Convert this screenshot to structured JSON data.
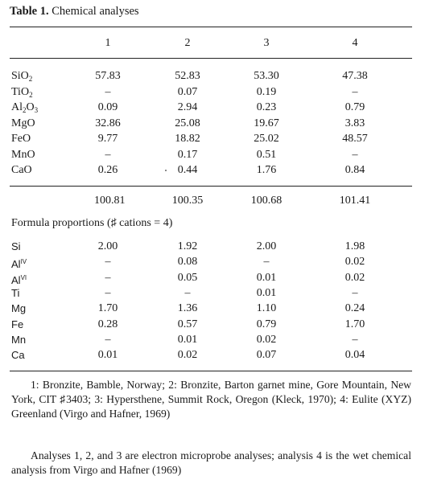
{
  "table": {
    "title_bold": "Table 1.",
    "title_rest": " Chemical analyses",
    "columns": [
      "1",
      "2",
      "3",
      "4"
    ],
    "oxides": [
      {
        "base": "SiO",
        "sub": "2",
        "sub2": "",
        "values": [
          "57.83",
          "52.83",
          "53.30",
          "47.38"
        ]
      },
      {
        "base": "TiO",
        "sub": "2",
        "sub2": "",
        "values": [
          "–",
          "0.07",
          "0.19",
          "–"
        ]
      },
      {
        "base": "Al",
        "sub": "2",
        "mid": "O",
        "sub2": "3",
        "values": [
          "0.09",
          "2.94",
          "0.23",
          "0.79"
        ]
      },
      {
        "base": "MgO",
        "sub": "",
        "sub2": "",
        "values": [
          "32.86",
          "25.08",
          "19.67",
          "3.83"
        ]
      },
      {
        "base": "FeO",
        "sub": "",
        "sub2": "",
        "values": [
          "9.77",
          "18.82",
          "25.02",
          "48.57"
        ]
      },
      {
        "base": "MnO",
        "sub": "",
        "sub2": "",
        "values": [
          "–",
          "0.17",
          "0.51",
          "–"
        ]
      },
      {
        "base": "CaO",
        "sub": "",
        "sub2": "",
        "values": [
          "0.26",
          "0.44",
          "1.76",
          "0.84"
        ]
      }
    ],
    "totals": [
      "100.81",
      "100.35",
      "100.68",
      "101.41"
    ],
    "formula_heading": "Formula proportions (♯ cations = 4)",
    "cations": [
      {
        "base": "Si",
        "sup": "",
        "values": [
          "2.00",
          "1.92",
          "2.00",
          "1.98"
        ]
      },
      {
        "base": "Al",
        "sup": "IV",
        "values": [
          "–",
          "0.08",
          "–",
          "0.02"
        ]
      },
      {
        "base": "Al",
        "sup": "VI",
        "values": [
          "–",
          "0.05",
          "0.01",
          "0.02"
        ]
      },
      {
        "base": "Ti",
        "sup": "",
        "values": [
          "–",
          "–",
          "0.01",
          "–"
        ]
      },
      {
        "base": "Mg",
        "sup": "",
        "values": [
          "1.70",
          "1.36",
          "1.10",
          "0.24"
        ]
      },
      {
        "base": "Fe",
        "sup": "",
        "values": [
          "0.28",
          "0.57",
          "0.79",
          "1.70"
        ]
      },
      {
        "base": "Mn",
        "sup": "",
        "values": [
          "–",
          "0.01",
          "0.02",
          "–"
        ]
      },
      {
        "base": "Ca",
        "sup": "",
        "values": [
          "0.01",
          "0.02",
          "0.07",
          "0.04"
        ]
      }
    ],
    "footnote1": "1: Bronzite, Bamble, Norway; 2: Bronzite, Barton garnet mine, Gore Mountain, New York, CIT ♯3403; 3: Hypersthene, Summit Rock, Oregon (Kleck, 1970); 4: Eulite (XYZ) Greenland (Virgo and Hafner, 1969)",
    "footnote2": "Analyses 1, 2, and 3 are electron microprobe analyses; analysis 4 is the wet chemical analysis from Virgo and Hafner (1969)"
  }
}
